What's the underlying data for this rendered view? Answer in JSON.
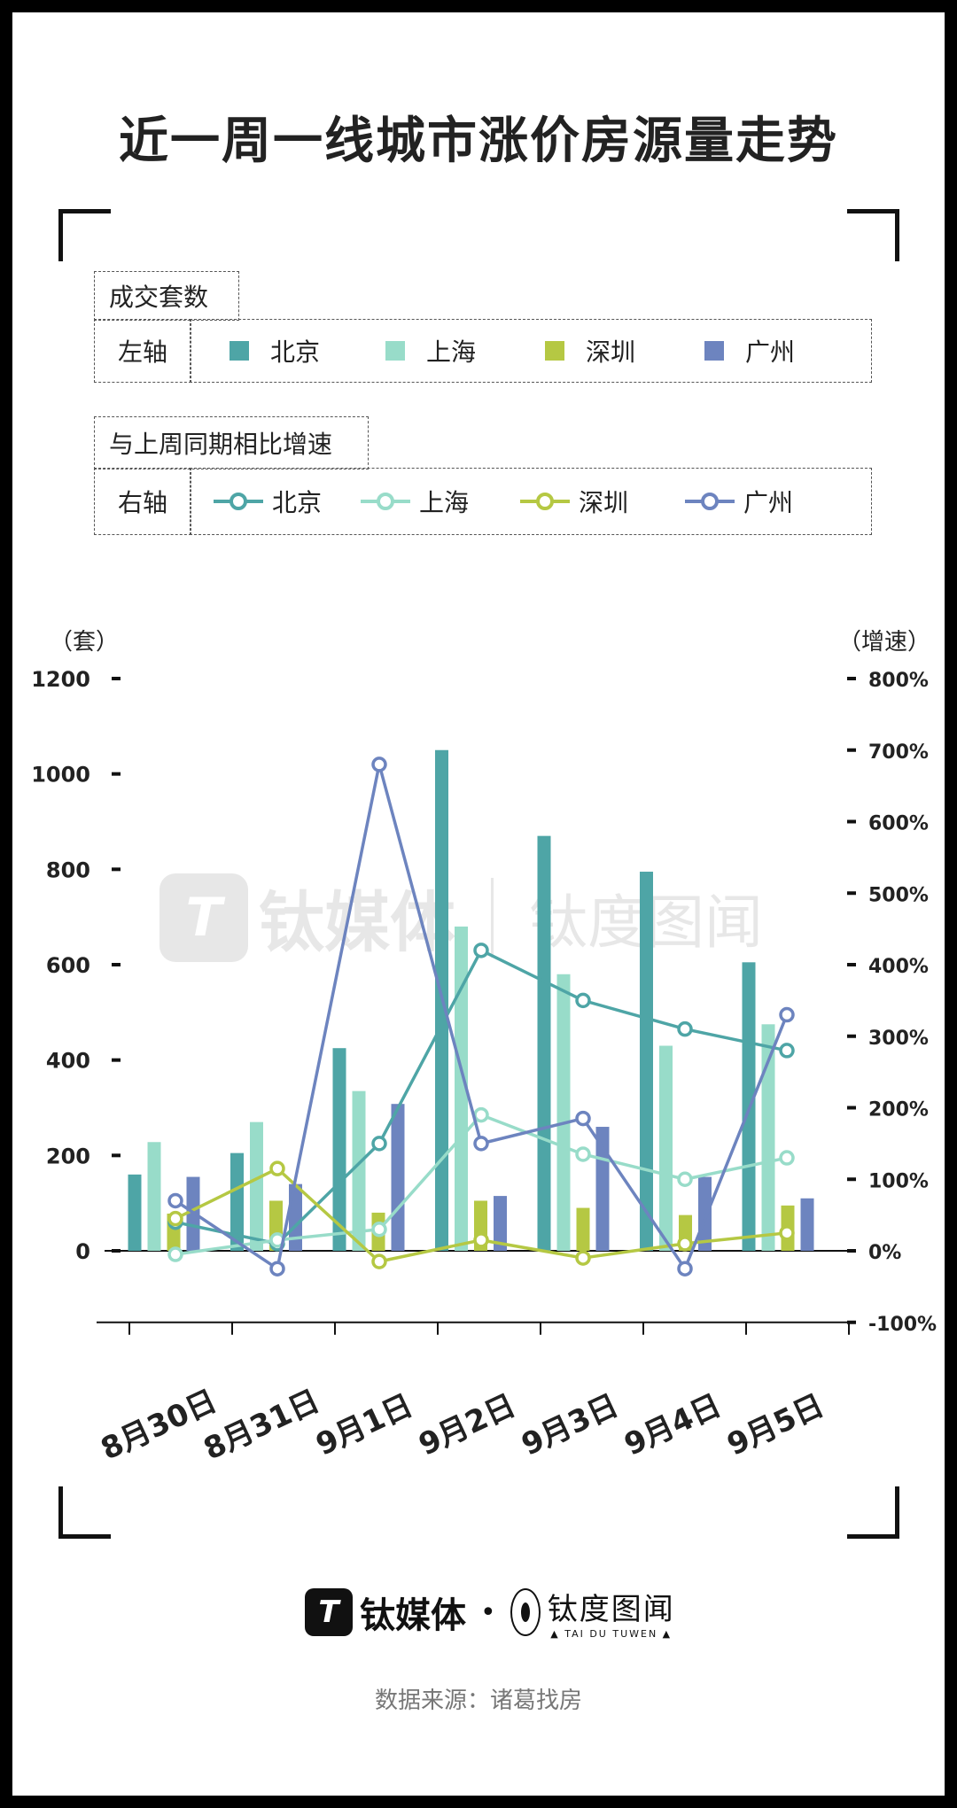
{
  "title": "近一周一线城市涨价房源量走势",
  "legend": {
    "bar_header": "成交套数",
    "bar_axis_label": "左轴",
    "line_header": "与上周同期相比增速",
    "line_axis_label": "右轴",
    "cities": [
      "北京",
      "上海",
      "深圳",
      "广州"
    ]
  },
  "colors": {
    "北京": "#4ea5a6",
    "上海": "#98dcc9",
    "深圳": "#b5c843",
    "广州": "#6d84bf"
  },
  "watermark": {
    "name": "钛媒体",
    "name2": "钛度图闻",
    "en": "▲ TAI DU TUWEN ▲"
  },
  "footer": {
    "logo_mark": "T",
    "brand": "钛媒体",
    "separator": "•",
    "brand2": "钛度图闻",
    "brand2_en": "▲ TAI DU TUWEN ▲",
    "source": "数据来源：诸葛找房"
  },
  "chart_data": {
    "type": "bar",
    "categories": [
      "8月30日",
      "8月31日",
      "9月1日",
      "9月2日",
      "9月3日",
      "9月4日",
      "9月5日"
    ],
    "y_left_label": "（套）",
    "y_right_label": "（增速）",
    "y_left_ticks": [
      "1200",
      "1000",
      "800",
      "600",
      "400",
      "200",
      "0"
    ],
    "y_right_ticks": [
      "800%",
      "700%",
      "600%",
      "500%",
      "400%",
      "300%",
      "200%",
      "100%",
      "0%",
      "-100%"
    ],
    "ylim_left": [
      0,
      1200
    ],
    "ylim_right": [
      -100,
      800
    ],
    "series": [
      {
        "name": "北京",
        "axis": "left",
        "kind": "bar",
        "values": [
          160,
          205,
          425,
          1050,
          870,
          795,
          605
        ]
      },
      {
        "name": "上海",
        "axis": "left",
        "kind": "bar",
        "values": [
          228,
          270,
          335,
          680,
          580,
          430,
          475
        ]
      },
      {
        "name": "深圳",
        "axis": "left",
        "kind": "bar",
        "values": [
          78,
          105,
          80,
          105,
          90,
          75,
          95
        ]
      },
      {
        "name": "广州",
        "axis": "left",
        "kind": "bar",
        "values": [
          155,
          140,
          308,
          115,
          260,
          155,
          110
        ]
      },
      {
        "name": "北京",
        "axis": "right",
        "kind": "line",
        "values": [
          40,
          10,
          150,
          420,
          350,
          310,
          280
        ]
      },
      {
        "name": "上海",
        "axis": "right",
        "kind": "line",
        "values": [
          -5,
          15,
          30,
          190,
          135,
          100,
          130
        ]
      },
      {
        "name": "深圳",
        "axis": "right",
        "kind": "line",
        "values": [
          45,
          115,
          -15,
          15,
          -10,
          10,
          25
        ]
      },
      {
        "name": "广州",
        "axis": "right",
        "kind": "line",
        "values": [
          70,
          -25,
          680,
          150,
          185,
          -25,
          330
        ]
      }
    ]
  }
}
